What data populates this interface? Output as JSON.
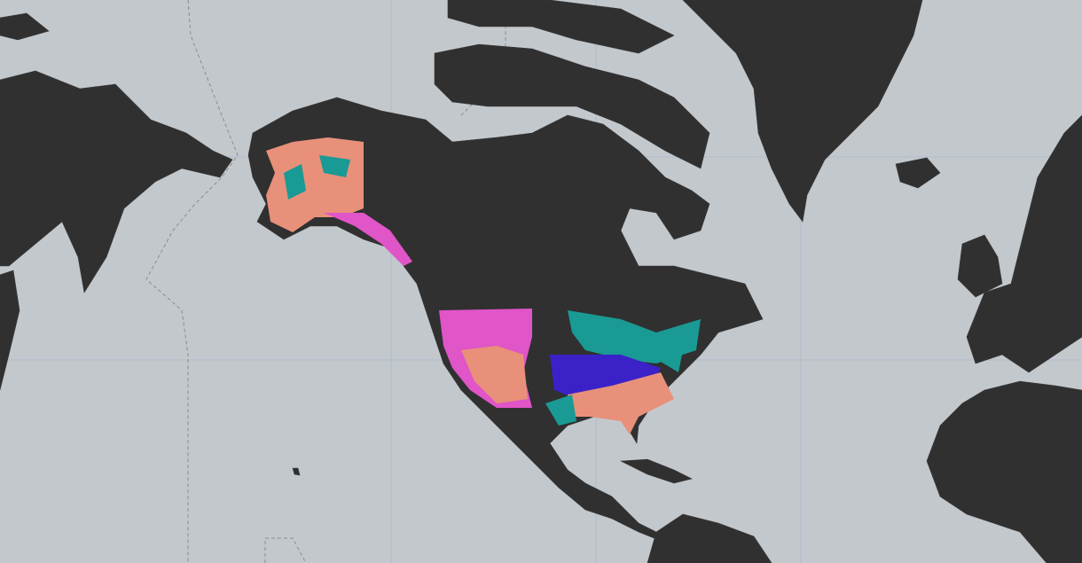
{
  "map": {
    "style": "dark-land",
    "colors": {
      "water": "#c3c8cd",
      "land": "#303030",
      "graticule": "#aab9cc",
      "maritime_boundary": "#8c8c8c"
    },
    "overlay_layer": {
      "region": "United States",
      "category_colors": [
        "#e8907a",
        "#e055c8",
        "#1a9a94",
        "#3a22c8"
      ]
    }
  }
}
